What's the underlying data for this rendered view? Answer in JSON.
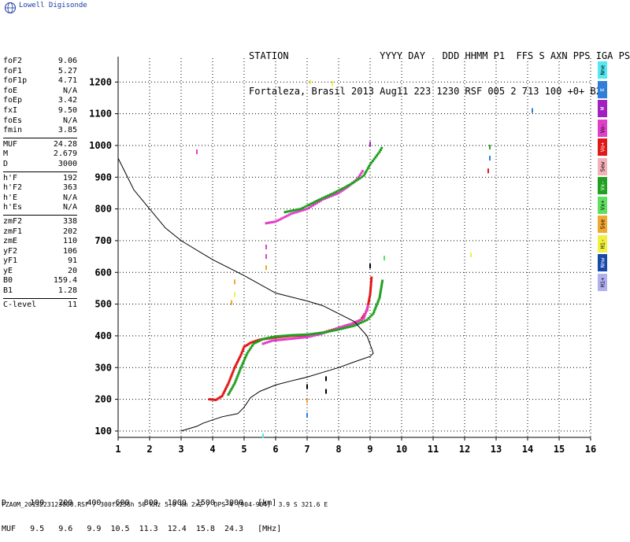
{
  "brand": {
    "name": "Lowell Digisonde"
  },
  "header": {
    "line1": "STATION                YYYY DAY   DDD HHMM P1  FFS S AXN PPS IGA PS",
    "line2": "Fortaleza, Brasil 2013 Aug11 223 1230 RSF 005 2 713 100 +0+ B2"
  },
  "params": [
    {
      "label": "foF2",
      "value": "9.06"
    },
    {
      "label": "foF1",
      "value": "5.27"
    },
    {
      "label": "foF1p",
      "value": "4.71"
    },
    {
      "label": "foE",
      "value": "N/A"
    },
    {
      "label": "foEp",
      "value": "3.42"
    },
    {
      "label": "fxI",
      "value": "9.50"
    },
    {
      "label": "foEs",
      "value": "N/A"
    },
    {
      "label": "fmin",
      "value": "3.85"
    },
    {
      "sep": true
    },
    {
      "label": "MUF",
      "value": "24.28"
    },
    {
      "label": "M",
      "value": "2.679"
    },
    {
      "label": "D",
      "value": "3000"
    },
    {
      "sep": true
    },
    {
      "label": "h'F",
      "value": "192"
    },
    {
      "label": "h'F2",
      "value": "363"
    },
    {
      "label": "h'E",
      "value": "N/A"
    },
    {
      "label": "h'Es",
      "value": "N/A"
    },
    {
      "sep": true
    },
    {
      "label": "zmF2",
      "value": "338"
    },
    {
      "label": "zmF1",
      "value": "202"
    },
    {
      "label": "zmE",
      "value": "110"
    },
    {
      "label": "yF2",
      "value": "106"
    },
    {
      "label": "yF1",
      "value": "91"
    },
    {
      "label": "yE",
      "value": "20"
    },
    {
      "label": "B0",
      "value": "159.4"
    },
    {
      "label": "B1",
      "value": "1.28"
    },
    {
      "sep": true
    },
    {
      "label": "C-level",
      "value": "11"
    }
  ],
  "legend": [
    {
      "label": "Nne",
      "color": "#55e8f0"
    },
    {
      "label": "E",
      "color": "#2f7fd8"
    },
    {
      "label": "W",
      "color": "#a020c0"
    },
    {
      "label": "Vo-",
      "color": "#e040c8"
    },
    {
      "label": "Vo+",
      "color": "#e01818"
    },
    {
      "label": "Sew",
      "color": "#f4b0b8"
    },
    {
      "label": "Vx-",
      "color": "#20a020"
    },
    {
      "label": "Vx+",
      "color": "#60e060"
    },
    {
      "label": "Sse",
      "color": "#f0a830"
    },
    {
      "label": "Hi-",
      "color": "#f0f040"
    },
    {
      "label": "Nnw",
      "color": "#1848a8"
    },
    {
      "label": "Hi+",
      "color": "#b0b0f0"
    }
  ],
  "muf_table": {
    "line1": "D     100   200   400   600   800  1000  1500  3000   [km]",
    "line2": "MUF   9.5   9.6   9.9  10.5  11.3  12.4  15.8  24.3   [MHz]"
  },
  "footer": "FZA0M_2013223123000.RSF / 300fx256h 50 kHz 5.0 km 2x2 / DPS-4 (904-904)  3.9 S 321.6 E",
  "chart_data": {
    "type": "scatter",
    "x_ticks": [
      1,
      2,
      3,
      4,
      5,
      6,
      7,
      8,
      9,
      10,
      11,
      12,
      13,
      14,
      15,
      16
    ],
    "y_ticks": [
      100,
      200,
      300,
      400,
      500,
      600,
      700,
      800,
      900,
      1000,
      1100,
      1200
    ],
    "xlim": [
      1,
      16
    ],
    "ylim": [
      80,
      1280
    ],
    "grid": true,
    "profile": [
      [
        1,
        960
      ],
      [
        1.5,
        860
      ],
      [
        2,
        800
      ],
      [
        2.5,
        740
      ],
      [
        3,
        700
      ],
      [
        4,
        640
      ],
      [
        5,
        590
      ],
      [
        6,
        535
      ],
      [
        7,
        510
      ],
      [
        7.5,
        495
      ],
      [
        8,
        470
      ],
      [
        8.5,
        445
      ],
      [
        8.9,
        400
      ],
      [
        9.05,
        360
      ],
      [
        9.1,
        345
      ],
      [
        9.0,
        335
      ],
      [
        8.5,
        318
      ],
      [
        8,
        300
      ],
      [
        7.5,
        285
      ],
      [
        7,
        270
      ],
      [
        6.5,
        258
      ],
      [
        6,
        245
      ],
      [
        5.5,
        225
      ],
      [
        5.2,
        205
      ],
      [
        5,
        175
      ],
      [
        4.8,
        155
      ],
      [
        4.3,
        145
      ],
      [
        4,
        135
      ],
      [
        3.7,
        125
      ],
      [
        3.5,
        115
      ],
      [
        3,
        100
      ]
    ],
    "traces": [
      {
        "color": "#e01818",
        "points": [
          [
            3.9,
            200
          ],
          [
            4.1,
            198
          ],
          [
            4.3,
            210
          ],
          [
            4.5,
            250
          ],
          [
            4.7,
            300
          ],
          [
            4.9,
            340
          ],
          [
            5,
            365
          ],
          [
            5.2,
            378
          ],
          [
            5.5,
            388
          ],
          [
            6,
            395
          ],
          [
            6.5,
            400
          ],
          [
            7,
            402
          ],
          [
            7.5,
            410
          ],
          [
            8,
            425
          ],
          [
            8.4,
            437
          ],
          [
            8.7,
            450
          ],
          [
            8.9,
            480
          ],
          [
            9,
            530
          ],
          [
            9.05,
            590
          ]
        ]
      },
      {
        "color": "#e040c8",
        "points": [
          [
            5.6,
            375
          ],
          [
            5.9,
            385
          ],
          [
            6.2,
            388
          ],
          [
            6.6,
            392
          ],
          [
            7,
            396
          ],
          [
            7.4,
            405
          ],
          [
            7.8,
            418
          ],
          [
            8.2,
            432
          ],
          [
            8.5,
            440
          ],
          [
            8.8,
            455
          ],
          [
            8.95,
            500
          ]
        ]
      },
      {
        "color": "#20a020",
        "points": [
          [
            4.5,
            215
          ],
          [
            4.7,
            250
          ],
          [
            4.9,
            300
          ],
          [
            5.1,
            345
          ],
          [
            5.3,
            375
          ],
          [
            5.6,
            390
          ],
          [
            6,
            398
          ],
          [
            6.5,
            402
          ],
          [
            7,
            404
          ],
          [
            7.5,
            410
          ],
          [
            8,
            420
          ],
          [
            8.5,
            432
          ],
          [
            8.9,
            450
          ],
          [
            9.1,
            470
          ],
          [
            9.3,
            520
          ],
          [
            9.4,
            580
          ]
        ]
      },
      {
        "color": "#e040c8",
        "points": [
          [
            5.7,
            755
          ],
          [
            6,
            760
          ],
          [
            6.5,
            785
          ],
          [
            7,
            800
          ],
          [
            7.5,
            830
          ],
          [
            8,
            850
          ],
          [
            8.3,
            870
          ],
          [
            8.6,
            895
          ],
          [
            8.8,
            925
          ]
        ]
      },
      {
        "color": "#20a020",
        "points": [
          [
            6.3,
            790
          ],
          [
            6.8,
            800
          ],
          [
            7.3,
            825
          ],
          [
            7.8,
            848
          ],
          [
            8.2,
            868
          ],
          [
            8.5,
            885
          ],
          [
            8.8,
            905
          ],
          [
            9,
            940
          ],
          [
            9.3,
            980
          ],
          [
            9.4,
            998
          ]
        ]
      }
    ],
    "specks": [
      {
        "x": 3.5,
        "y": 980,
        "color": "#e040c8"
      },
      {
        "x": 5.7,
        "y": 680,
        "color": "#e040c8"
      },
      {
        "x": 5.7,
        "y": 650,
        "color": "#e040c8"
      },
      {
        "x": 5.7,
        "y": 615,
        "color": "#f0a830"
      },
      {
        "x": 4.7,
        "y": 570,
        "color": "#f0a830"
      },
      {
        "x": 4.7,
        "y": 530,
        "color": "#f0f040"
      },
      {
        "x": 4.6,
        "y": 505,
        "color": "#f0a830"
      },
      {
        "x": 9,
        "y": 620,
        "color": "#000000"
      },
      {
        "x": 9,
        "y": 1005,
        "color": "#a020c0"
      },
      {
        "x": 12.8,
        "y": 995,
        "color": "#20a020"
      },
      {
        "x": 12.8,
        "y": 960,
        "color": "#2f7fd8"
      },
      {
        "x": 12.75,
        "y": 920,
        "color": "#e01818"
      },
      {
        "x": 12.2,
        "y": 655,
        "color": "#f0f040"
      },
      {
        "x": 14.15,
        "y": 1110,
        "color": "#2f7fd8"
      },
      {
        "x": 7.8,
        "y": 1195,
        "color": "#f0f040"
      },
      {
        "x": 7,
        "y": 240,
        "color": "#000000"
      },
      {
        "x": 7,
        "y": 195,
        "color": "#f0a830"
      },
      {
        "x": 7,
        "y": 150,
        "color": "#2f7fd8"
      },
      {
        "x": 7.6,
        "y": 265,
        "color": "#000000"
      },
      {
        "x": 7.6,
        "y": 225,
        "color": "#000000"
      },
      {
        "x": 5.6,
        "y": 85,
        "color": "#55e8f0"
      },
      {
        "x": 9.45,
        "y": 645,
        "color": "#60e060"
      },
      {
        "x": 7.1,
        "y": 1200,
        "color": "#f0f040"
      }
    ]
  }
}
